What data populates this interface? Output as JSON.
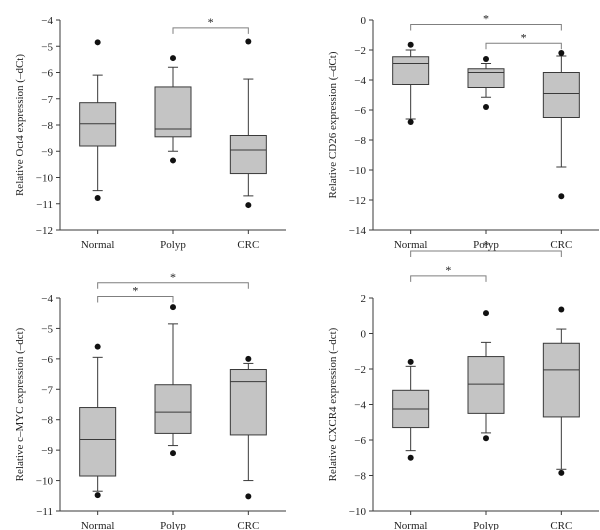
{
  "style": {
    "box_fill": "#c4c4c4",
    "line_color": "#3a3a3a",
    "outlier_color": "#111111",
    "bracket_color": "#7f7f7f",
    "sig_color": "#7f7f7f"
  },
  "chart_data": [
    {
      "type": "box",
      "ylabel": "Relative Oct4 expression (–dCt)",
      "ylim": [
        -12,
        -4
      ],
      "yticks": [
        -12,
        -11,
        -10,
        -9,
        -8,
        -7,
        -6,
        -5,
        -4
      ],
      "categories": [
        "Normal",
        "Polyp",
        "CRC"
      ],
      "boxes": [
        {
          "category": "Normal",
          "whisker_low": -10.5,
          "q1": -8.8,
          "median": -7.95,
          "q3": -7.15,
          "whisker_high": -6.1,
          "outliers": [
            -4.85,
            -10.78
          ]
        },
        {
          "category": "Polyp",
          "whisker_low": -9.0,
          "q1": -8.45,
          "median": -8.15,
          "q3": -6.55,
          "whisker_high": -5.8,
          "outliers": [
            -5.45,
            -9.35
          ]
        },
        {
          "category": "CRC",
          "whisker_low": -10.7,
          "q1": -9.85,
          "median": -8.95,
          "q3": -8.4,
          "whisker_high": -6.25,
          "outliers": [
            -4.82,
            -11.05
          ]
        }
      ],
      "significance": [
        {
          "from": "Polyp",
          "to": "CRC",
          "level": -4.3,
          "label": "*"
        }
      ]
    },
    {
      "type": "box",
      "ylabel": "Relative CD26 expression (–dCt)",
      "ylim": [
        -14,
        0
      ],
      "yticks": [
        -14,
        -12,
        -10,
        -8,
        -6,
        -4,
        -2,
        0
      ],
      "categories": [
        "Normal",
        "Polyp",
        "CRC"
      ],
      "boxes": [
        {
          "category": "Normal",
          "whisker_low": -6.6,
          "q1": -4.3,
          "median": -2.9,
          "q3": -2.45,
          "whisker_high": -2.0,
          "outliers": [
            -1.65,
            -6.8
          ]
        },
        {
          "category": "Polyp",
          "whisker_low": -5.15,
          "q1": -4.5,
          "median": -3.5,
          "q3": -3.25,
          "whisker_high": -2.9,
          "outliers": [
            -2.6,
            -5.8
          ]
        },
        {
          "category": "CRC",
          "whisker_low": -9.8,
          "q1": -6.5,
          "median": -4.9,
          "q3": -3.5,
          "whisker_high": -2.4,
          "outliers": [
            -2.2,
            -11.75
          ]
        }
      ],
      "significance": [
        {
          "from": "Normal",
          "to": "CRC",
          "level": -0.3,
          "label": "*"
        },
        {
          "from": "Polyp",
          "to": "CRC",
          "level": -1.55,
          "label": "*"
        }
      ]
    },
    {
      "type": "box",
      "ylabel": "Relative c–MYC expression (–dct)",
      "ylim": [
        -11,
        -4
      ],
      "yticks": [
        -11,
        -10,
        -9,
        -8,
        -7,
        -6,
        -5,
        -4
      ],
      "categories": [
        "Normal",
        "Polyp",
        "CRC"
      ],
      "boxes": [
        {
          "category": "Normal",
          "whisker_low": -10.35,
          "q1": -9.85,
          "median": -8.65,
          "q3": -7.6,
          "whisker_high": -5.95,
          "outliers": [
            -5.6,
            -10.48
          ]
        },
        {
          "category": "Polyp",
          "whisker_low": -8.85,
          "q1": -8.45,
          "median": -7.75,
          "q3": -6.85,
          "whisker_high": -4.85,
          "outliers": [
            -4.3,
            -9.1
          ]
        },
        {
          "category": "CRC",
          "whisker_low": -10.0,
          "q1": -8.5,
          "median": -6.75,
          "q3": -6.35,
          "whisker_high": -6.15,
          "outliers": [
            -6.0,
            -10.52
          ]
        }
      ],
      "significance": [
        {
          "from": "Normal",
          "to": "Polyp",
          "level": -3.95,
          "label": "*"
        },
        {
          "from": "Normal",
          "to": "CRC",
          "level": -3.5,
          "label": "*"
        }
      ]
    },
    {
      "type": "box",
      "ylabel": "Relative CXCR4 expression (–dct)",
      "ylim": [
        -10,
        2
      ],
      "yticks": [
        -10,
        -8,
        -6,
        -4,
        -2,
        0,
        2
      ],
      "categories": [
        "Normal",
        "Polyp",
        "CRC"
      ],
      "boxes": [
        {
          "category": "Normal",
          "whisker_low": -6.6,
          "q1": -5.3,
          "median": -4.25,
          "q3": -3.2,
          "whisker_high": -1.85,
          "outliers": [
            -1.6,
            -7.0
          ]
        },
        {
          "category": "Polyp",
          "whisker_low": -5.6,
          "q1": -4.5,
          "median": -2.85,
          "q3": -1.3,
          "whisker_high": -0.5,
          "outliers": [
            1.15,
            -5.9
          ]
        },
        {
          "category": "CRC",
          "whisker_low": -7.65,
          "q1": -4.7,
          "median": -2.05,
          "q3": -0.55,
          "whisker_high": 0.25,
          "outliers": [
            1.35,
            -7.85
          ]
        }
      ],
      "significance": [
        {
          "from": "Normal",
          "to": "Polyp",
          "level": 3.25,
          "label": "*"
        },
        {
          "from": "Normal",
          "to": "CRC",
          "level": 4.65,
          "label": "*"
        }
      ]
    }
  ]
}
